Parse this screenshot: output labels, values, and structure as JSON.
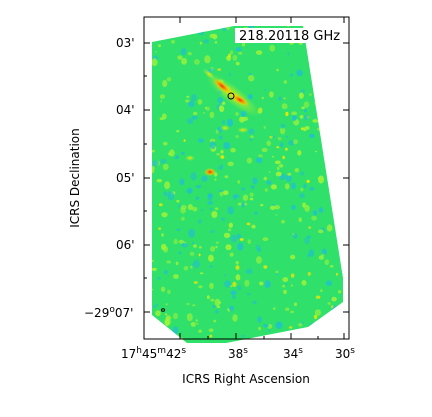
{
  "chart_data": {
    "type": "heatmap",
    "title": "218.20118 GHz",
    "xlabel": "ICRS Right Ascension",
    "ylabel": "ICRS Declination",
    "x_ticks": [
      {
        "h": "17",
        "m": "45",
        "s": "42",
        "value_s": 42
      },
      {
        "s": "38",
        "value_s": 38
      },
      {
        "s": "34",
        "value_s": 34
      },
      {
        "s": "30",
        "value_s": 30
      }
    ],
    "y_ticks": [
      {
        "label": "03'",
        "value_arcmin": 3
      },
      {
        "label": "04'",
        "value_arcmin": 4
      },
      {
        "label": "05'",
        "value_arcmin": 5
      },
      {
        "label": "06'",
        "value_arcmin": 6
      },
      {
        "deg": "−29",
        "min": "07'",
        "value_arcmin": 7
      }
    ],
    "colors": {
      "background_field": "#2fe06a",
      "low": "#21c3c8",
      "mid": "#9df23a",
      "high": "#f2e800",
      "peak": "#e8351c"
    },
    "grid": false
  }
}
